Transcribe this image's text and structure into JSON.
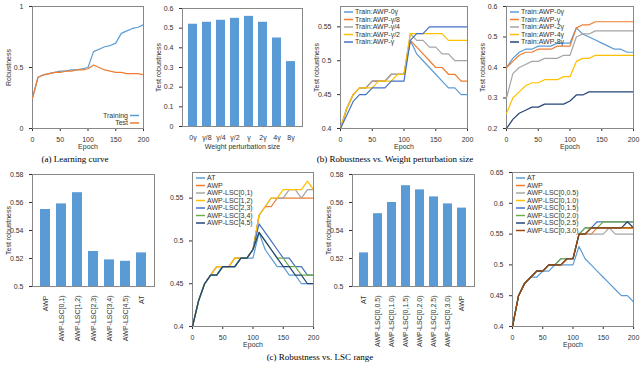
{
  "chart_data": [
    {
      "type": "line",
      "x_label": "Epoch",
      "y_label": "Robustness",
      "grid": false,
      "legend": "bottom-right",
      "x": [
        0,
        10,
        20,
        30,
        40,
        50,
        60,
        70,
        80,
        90,
        100,
        110,
        120,
        130,
        140,
        150,
        160,
        170,
        180,
        190,
        200
      ],
      "xlim": [
        0,
        200
      ],
      "xticks": [
        0,
        50,
        100,
        150,
        200
      ],
      "ylim": [
        0,
        1
      ],
      "yticks": [
        0,
        0.5,
        1
      ],
      "series": [
        {
          "name": "Training",
          "color": "#5b9bd5",
          "values": [
            0.25,
            0.42,
            0.44,
            0.45,
            0.46,
            0.47,
            0.47,
            0.48,
            0.48,
            0.49,
            0.5,
            0.63,
            0.65,
            0.67,
            0.68,
            0.7,
            0.78,
            0.8,
            0.82,
            0.83,
            0.85
          ]
        },
        {
          "name": "Test",
          "color": "#ed7d31",
          "values": [
            0.25,
            0.42,
            0.44,
            0.45,
            0.46,
            0.46,
            0.47,
            0.47,
            0.48,
            0.48,
            0.49,
            0.52,
            0.5,
            0.48,
            0.47,
            0.46,
            0.46,
            0.45,
            0.45,
            0.45,
            0.44
          ]
        }
      ]
    },
    {
      "type": "bar",
      "x_label": "Weight perturbation size",
      "y_label": "Test robustness",
      "grid": false,
      "color": "#5b9bd5",
      "categories": [
        "0γ",
        "γ/8",
        "γ/4",
        "γ/2",
        "γ",
        "2γ",
        "4γ",
        "8γ"
      ],
      "values": [
        0.52,
        0.53,
        0.54,
        0.55,
        0.56,
        0.53,
        0.45,
        0.33
      ],
      "ylim": [
        0,
        0.6
      ],
      "yticks": [
        0,
        0.1,
        0.2,
        0.3,
        0.4,
        0.5,
        0.6
      ]
    },
    {
      "type": "line",
      "x_label": "Epoch",
      "y_label": "Test robustness",
      "grid": false,
      "legend": "top-left",
      "x": [
        0,
        10,
        20,
        30,
        40,
        50,
        60,
        70,
        80,
        90,
        100,
        110,
        120,
        130,
        140,
        150,
        160,
        170,
        180,
        190,
        200
      ],
      "xlim": [
        0,
        200
      ],
      "xticks": [
        0,
        50,
        100,
        150,
        200
      ],
      "ylim": [
        0.4,
        0.58
      ],
      "yticks": [
        0.4,
        0.45,
        0.5,
        0.55
      ],
      "series": [
        {
          "name": "Train:AWP-0γ",
          "color": "#5b9bd5",
          "values": [
            0.4,
            0.43,
            0.45,
            0.46,
            0.46,
            0.47,
            0.47,
            0.47,
            0.48,
            0.48,
            0.48,
            0.53,
            0.51,
            0.5,
            0.49,
            0.48,
            0.47,
            0.46,
            0.46,
            0.45,
            0.45
          ]
        },
        {
          "name": "Train:AWP-γ/8",
          "color": "#ed7d31",
          "values": [
            0.4,
            0.43,
            0.45,
            0.46,
            0.46,
            0.47,
            0.47,
            0.47,
            0.48,
            0.48,
            0.48,
            0.53,
            0.52,
            0.51,
            0.5,
            0.49,
            0.49,
            0.48,
            0.48,
            0.47,
            0.47
          ]
        },
        {
          "name": "Train:AWP-γ/4",
          "color": "#a5a5a5",
          "values": [
            0.4,
            0.43,
            0.45,
            0.46,
            0.46,
            0.47,
            0.47,
            0.47,
            0.48,
            0.48,
            0.48,
            0.54,
            0.53,
            0.53,
            0.52,
            0.52,
            0.51,
            0.51,
            0.5,
            0.5,
            0.5
          ]
        },
        {
          "name": "Train:AWP-γ/2",
          "color": "#ffc000",
          "values": [
            0.4,
            0.43,
            0.45,
            0.46,
            0.46,
            0.46,
            0.47,
            0.47,
            0.47,
            0.48,
            0.48,
            0.54,
            0.54,
            0.54,
            0.54,
            0.54,
            0.54,
            0.53,
            0.53,
            0.53,
            0.53
          ]
        },
        {
          "name": "Train:AWP-γ",
          "color": "#4472c4",
          "values": [
            0.4,
            0.42,
            0.44,
            0.45,
            0.45,
            0.46,
            0.46,
            0.46,
            0.47,
            0.47,
            0.47,
            0.53,
            0.54,
            0.54,
            0.55,
            0.55,
            0.55,
            0.55,
            0.55,
            0.55,
            0.55
          ]
        }
      ]
    },
    {
      "type": "line",
      "x_label": "Epoch",
      "y_label": "Test robustness",
      "grid": false,
      "legend": "top-left",
      "x": [
        0,
        10,
        20,
        30,
        40,
        50,
        60,
        70,
        80,
        90,
        100,
        110,
        120,
        130,
        140,
        150,
        160,
        170,
        180,
        190,
        200
      ],
      "xlim": [
        0,
        200
      ],
      "xticks": [
        0,
        50,
        100,
        150,
        200
      ],
      "ylim": [
        0.2,
        0.6
      ],
      "yticks": [
        0.2,
        0.3,
        0.4,
        0.5,
        0.6
      ],
      "series": [
        {
          "name": "Train:AWP-0γ",
          "color": "#5b9bd5",
          "values": [
            0.4,
            0.43,
            0.45,
            0.46,
            0.46,
            0.47,
            0.47,
            0.47,
            0.48,
            0.48,
            0.48,
            0.53,
            0.51,
            0.5,
            0.49,
            0.48,
            0.47,
            0.46,
            0.46,
            0.45,
            0.45
          ]
        },
        {
          "name": "Train:AWP-γ",
          "color": "#ed7d31",
          "values": [
            0.4,
            0.42,
            0.44,
            0.45,
            0.45,
            0.46,
            0.46,
            0.46,
            0.47,
            0.47,
            0.47,
            0.53,
            0.54,
            0.54,
            0.55,
            0.55,
            0.55,
            0.55,
            0.55,
            0.55,
            0.55
          ]
        },
        {
          "name": "Train:AWP-2γ",
          "color": "#a5a5a5",
          "values": [
            0.3,
            0.38,
            0.4,
            0.41,
            0.42,
            0.42,
            0.43,
            0.43,
            0.43,
            0.44,
            0.44,
            0.5,
            0.51,
            0.51,
            0.52,
            0.52,
            0.52,
            0.52,
            0.52,
            0.52,
            0.52
          ]
        },
        {
          "name": "Train:AWP-4γ",
          "color": "#ffc000",
          "values": [
            0.25,
            0.3,
            0.32,
            0.34,
            0.35,
            0.35,
            0.36,
            0.36,
            0.36,
            0.37,
            0.37,
            0.42,
            0.43,
            0.43,
            0.44,
            0.44,
            0.44,
            0.44,
            0.44,
            0.44,
            0.44
          ]
        },
        {
          "name": "Train:AWP-8γ",
          "color": "#264478",
          "values": [
            0.2,
            0.23,
            0.25,
            0.26,
            0.27,
            0.27,
            0.28,
            0.28,
            0.28,
            0.28,
            0.29,
            0.31,
            0.31,
            0.32,
            0.32,
            0.32,
            0.32,
            0.32,
            0.32,
            0.32,
            0.32
          ]
        }
      ]
    },
    {
      "type": "bar",
      "y_label": "Test robustness",
      "grid": false,
      "color": "#5b9bd5",
      "categories": [
        "AWP",
        "AWP-LSC[0,1)",
        "AWP-LSC[1,2)",
        "AWP-LSC[2,3)",
        "AWP-LSC[3,4)",
        "AWP-LSC[4,5)",
        "AT"
      ],
      "values": [
        0.555,
        0.559,
        0.567,
        0.525,
        0.519,
        0.518,
        0.524
      ],
      "ylim": [
        0.5,
        0.58
      ],
      "yticks": [
        0.5,
        0.52,
        0.54,
        0.56,
        0.58
      ]
    },
    {
      "type": "line",
      "x_label": "Epoch",
      "grid": false,
      "legend": "top-left",
      "x": [
        0,
        10,
        20,
        30,
        40,
        50,
        60,
        70,
        80,
        90,
        100,
        110,
        120,
        130,
        140,
        150,
        160,
        170,
        180,
        190,
        200
      ],
      "xlim": [
        0,
        200
      ],
      "xticks": [
        0,
        50,
        100,
        150,
        200
      ],
      "ylim": [
        0.4,
        0.58
      ],
      "yticks": [
        0.4,
        0.45,
        0.5,
        0.55
      ],
      "series": [
        {
          "name": "AT",
          "color": "#5b9bd5",
          "values": [
            0.4,
            0.43,
            0.45,
            0.46,
            0.46,
            0.47,
            0.47,
            0.47,
            0.48,
            0.48,
            0.48,
            0.51,
            0.49,
            0.48,
            0.47,
            0.47,
            0.46,
            0.46,
            0.45,
            0.45,
            0.45
          ]
        },
        {
          "name": "AWP",
          "color": "#ed7d31",
          "values": [
            0.4,
            0.43,
            0.45,
            0.46,
            0.47,
            0.47,
            0.47,
            0.48,
            0.48,
            0.48,
            0.49,
            0.53,
            0.54,
            0.54,
            0.55,
            0.55,
            0.55,
            0.55,
            0.55,
            0.55,
            0.55
          ]
        },
        {
          "name": "AWP-LSC[0,1)",
          "color": "#a5a5a5",
          "values": [
            0.4,
            0.43,
            0.45,
            0.46,
            0.47,
            0.47,
            0.47,
            0.48,
            0.48,
            0.48,
            0.49,
            0.53,
            0.54,
            0.55,
            0.55,
            0.55,
            0.56,
            0.56,
            0.55,
            0.56,
            0.56
          ]
        },
        {
          "name": "AWP-LSC[1,2)",
          "color": "#ffc000",
          "values": [
            0.4,
            0.43,
            0.45,
            0.46,
            0.47,
            0.47,
            0.47,
            0.48,
            0.48,
            0.48,
            0.49,
            0.53,
            0.54,
            0.55,
            0.55,
            0.56,
            0.56,
            0.56,
            0.56,
            0.57,
            0.56
          ]
        },
        {
          "name": "AWP-LSC[2,3)",
          "color": "#4472c4",
          "values": [
            0.4,
            0.43,
            0.45,
            0.46,
            0.46,
            0.47,
            0.47,
            0.47,
            0.48,
            0.48,
            0.49,
            0.52,
            0.51,
            0.5,
            0.49,
            0.48,
            0.48,
            0.47,
            0.47,
            0.46,
            0.46
          ]
        },
        {
          "name": "AWP-LSC[3,4)",
          "color": "#70ad47",
          "values": [
            0.4,
            0.43,
            0.45,
            0.46,
            0.46,
            0.47,
            0.47,
            0.47,
            0.48,
            0.48,
            0.49,
            0.51,
            0.5,
            0.49,
            0.48,
            0.48,
            0.47,
            0.47,
            0.46,
            0.46,
            0.46
          ]
        },
        {
          "name": "AWP-LSC[4,5)",
          "color": "#264478",
          "values": [
            0.4,
            0.43,
            0.45,
            0.46,
            0.46,
            0.47,
            0.47,
            0.47,
            0.48,
            0.48,
            0.49,
            0.51,
            0.5,
            0.49,
            0.48,
            0.47,
            0.47,
            0.46,
            0.46,
            0.45,
            0.45
          ]
        }
      ]
    },
    {
      "type": "bar",
      "y_label": "Test robustness",
      "grid": false,
      "color": "#5b9bd5",
      "categories": [
        "AT",
        "AWP-LSC[0,0.5)",
        "AWP-LSC[0,1.0)",
        "AWP-LSC[0,1.5)",
        "AWP-LSC[0,2.0)",
        "AWP-LSC[0,2.5)",
        "AWP-LSC[0,3.0)",
        "AWP"
      ],
      "values": [
        0.524,
        0.552,
        0.56,
        0.572,
        0.569,
        0.564,
        0.559,
        0.556
      ],
      "ylim": [
        0.5,
        0.58
      ],
      "yticks": [
        0.5,
        0.52,
        0.54,
        0.56,
        0.58
      ]
    },
    {
      "type": "line",
      "x_label": "Epoch",
      "grid": false,
      "legend": "top-left",
      "x": [
        0,
        10,
        20,
        30,
        40,
        50,
        60,
        70,
        80,
        90,
        100,
        110,
        120,
        130,
        140,
        150,
        160,
        170,
        180,
        190,
        200
      ],
      "xlim": [
        0,
        200
      ],
      "xticks": [
        0,
        50,
        100,
        150,
        200
      ],
      "ylim": [
        0.4,
        0.65
      ],
      "yticks": [
        0.4,
        0.45,
        0.5,
        0.55,
        0.6,
        0.65
      ],
      "series": [
        {
          "name": "AT",
          "color": "#5b9bd5",
          "values": [
            0.4,
            0.45,
            0.47,
            0.48,
            0.48,
            0.49,
            0.49,
            0.5,
            0.5,
            0.5,
            0.5,
            0.53,
            0.51,
            0.5,
            0.49,
            0.48,
            0.47,
            0.46,
            0.45,
            0.45,
            0.44
          ]
        },
        {
          "name": "AWP",
          "color": "#ed7d31",
          "values": [
            0.4,
            0.45,
            0.47,
            0.48,
            0.49,
            0.49,
            0.5,
            0.5,
            0.5,
            0.51,
            0.51,
            0.55,
            0.55,
            0.55,
            0.56,
            0.56,
            0.56,
            0.56,
            0.56,
            0.56,
            0.56
          ]
        },
        {
          "name": "AWP-LSC[0,0.5)",
          "color": "#a5a5a5",
          "values": [
            0.4,
            0.45,
            0.47,
            0.48,
            0.49,
            0.49,
            0.5,
            0.5,
            0.5,
            0.51,
            0.51,
            0.55,
            0.55,
            0.55,
            0.55,
            0.55,
            0.56,
            0.55,
            0.55,
            0.55,
            0.55
          ]
        },
        {
          "name": "AWP-LSC[0,1.0)",
          "color": "#ffc000",
          "values": [
            0.4,
            0.45,
            0.47,
            0.48,
            0.49,
            0.49,
            0.5,
            0.5,
            0.5,
            0.51,
            0.51,
            0.55,
            0.55,
            0.56,
            0.56,
            0.56,
            0.56,
            0.56,
            0.56,
            0.56,
            0.56
          ]
        },
        {
          "name": "AWP-LSC[0,1.5)",
          "color": "#4472c4",
          "values": [
            0.4,
            0.45,
            0.47,
            0.48,
            0.49,
            0.49,
            0.5,
            0.5,
            0.51,
            0.51,
            0.51,
            0.55,
            0.56,
            0.56,
            0.57,
            0.57,
            0.57,
            0.57,
            0.57,
            0.57,
            0.57
          ]
        },
        {
          "name": "AWP-LSC[0,2.0)",
          "color": "#70ad47",
          "values": [
            0.4,
            0.45,
            0.47,
            0.48,
            0.49,
            0.49,
            0.5,
            0.5,
            0.51,
            0.51,
            0.51,
            0.55,
            0.56,
            0.56,
            0.56,
            0.57,
            0.57,
            0.57,
            0.57,
            0.57,
            0.57
          ]
        },
        {
          "name": "AWP-LSC[0,2.5)",
          "color": "#264478",
          "values": [
            0.4,
            0.45,
            0.47,
            0.48,
            0.49,
            0.49,
            0.5,
            0.5,
            0.5,
            0.51,
            0.51,
            0.55,
            0.55,
            0.56,
            0.56,
            0.56,
            0.56,
            0.56,
            0.56,
            0.57,
            0.56
          ]
        },
        {
          "name": "AWP-LSC[0,3.0)",
          "color": "#9e480e",
          "values": [
            0.4,
            0.45,
            0.47,
            0.48,
            0.49,
            0.49,
            0.5,
            0.5,
            0.5,
            0.51,
            0.51,
            0.55,
            0.55,
            0.56,
            0.56,
            0.56,
            0.56,
            0.56,
            0.56,
            0.56,
            0.56
          ]
        }
      ]
    }
  ],
  "captions": [
    "(a) Learning curve",
    "(b) Robustness vs. Weight perturbation size",
    "(c) Robustness vs. LSC range"
  ]
}
